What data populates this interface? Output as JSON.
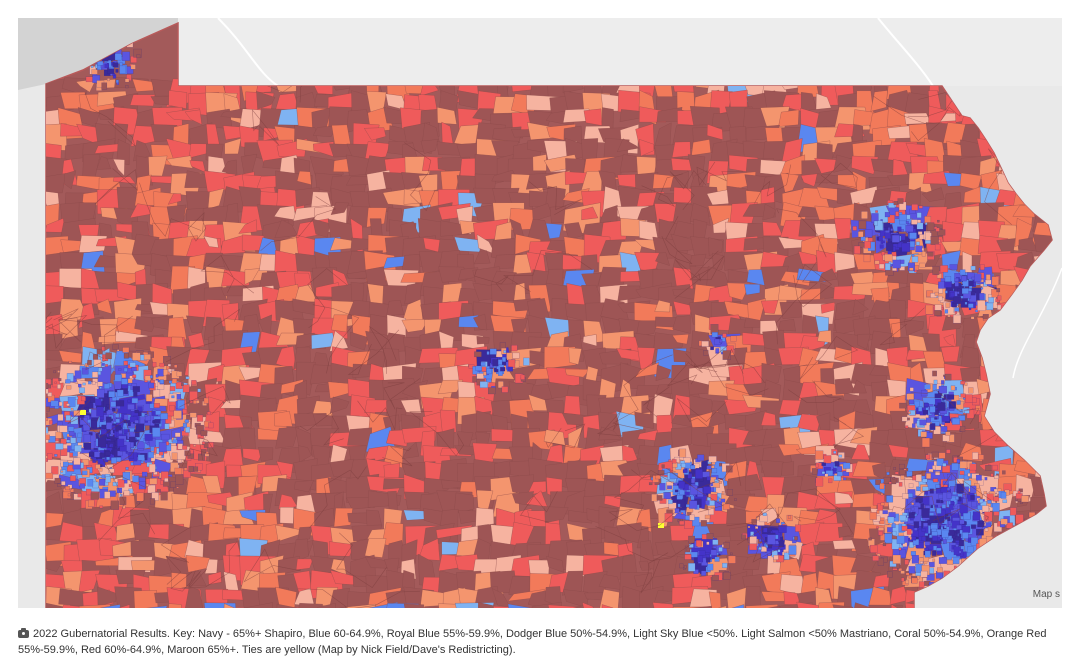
{
  "map": {
    "attribution": "Map s",
    "colors": {
      "land_outside": "#e9e9e9",
      "lake": "#d3d3d3",
      "state_border": "#b85a5a",
      "base": "#a35a5a",
      "maroon": "#9e5555",
      "red": "#ef5b5b",
      "orange_red": "#f27a5a",
      "coral": "#f4956e",
      "light_salmon": "#f6b3a0",
      "light_sky_blue": "#7fb3f2",
      "dodger_blue": "#5a87f0",
      "royal_blue": "#5a55e0",
      "blue": "#4433c8",
      "navy": "#3a2a9a",
      "tie": "#ffff33"
    },
    "blue_clusters": [
      "erie",
      "pittsburgh",
      "harrisburg",
      "lancaster",
      "philadelphia",
      "allentown",
      "scranton-wilkes-barre",
      "state-college",
      "reading"
    ]
  },
  "caption": {
    "icon": "camera-icon",
    "text": "2022 Gubernatorial Results. Key: Navy - 65%+ Shapiro, Blue 60-64.9%, Royal Blue 55%-59.9%, Dodger Blue 50%-54.9%, Light Sky Blue <50%. Light Salmon <50% Mastriano, Coral 50%-54.9%, Orange Red 55%-59.9%, Red 60%-64.9%, Maroon 65%+. Ties are yellow (Map by Nick Field/Dave's Redistricting)."
  }
}
